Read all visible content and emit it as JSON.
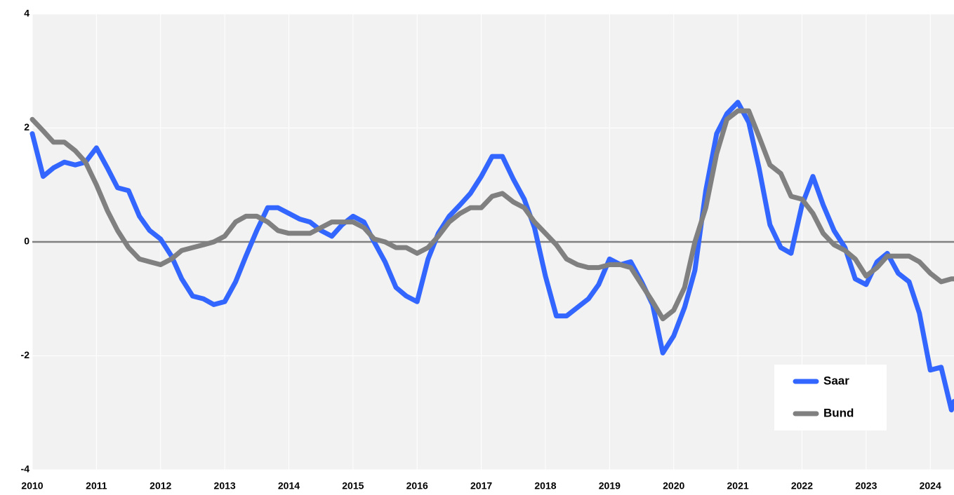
{
  "chart_data": {
    "type": "line",
    "x": [
      2010,
      2010.17,
      2010.33,
      2010.5,
      2010.67,
      2010.83,
      2011,
      2011.17,
      2011.33,
      2011.5,
      2011.67,
      2011.83,
      2012,
      2012.17,
      2012.33,
      2012.5,
      2012.67,
      2012.83,
      2013,
      2013.17,
      2013.33,
      2013.5,
      2013.67,
      2013.83,
      2014,
      2014.17,
      2014.33,
      2014.5,
      2014.67,
      2014.83,
      2015,
      2015.17,
      2015.33,
      2015.5,
      2015.67,
      2015.83,
      2016,
      2016.17,
      2016.33,
      2016.5,
      2016.67,
      2016.83,
      2017,
      2017.17,
      2017.33,
      2017.5,
      2017.67,
      2017.83,
      2018,
      2018.17,
      2018.33,
      2018.5,
      2018.67,
      2018.83,
      2019,
      2019.17,
      2019.33,
      2019.5,
      2019.67,
      2019.83,
      2020,
      2020.17,
      2020.33,
      2020.5,
      2020.67,
      2020.83,
      2021,
      2021.17,
      2021.33,
      2021.5,
      2021.67,
      2021.83,
      2022,
      2022.17,
      2022.33,
      2022.5,
      2022.67,
      2022.83,
      2023,
      2023.17,
      2023.33,
      2023.5,
      2023.67,
      2023.83,
      2024,
      2024.17,
      2024.33,
      2024.37
    ],
    "series": [
      {
        "name": "Saar",
        "color": "#3366ff",
        "values": [
          1.9,
          1.15,
          1.3,
          1.4,
          1.35,
          1.4,
          1.65,
          1.3,
          0.95,
          0.9,
          0.45,
          0.2,
          0.05,
          -0.25,
          -0.65,
          -0.95,
          -1.0,
          -1.1,
          -1.05,
          -0.7,
          -0.25,
          0.2,
          0.6,
          0.6,
          0.5,
          0.4,
          0.35,
          0.2,
          0.1,
          0.3,
          0.45,
          0.35,
          0.0,
          -0.35,
          -0.8,
          -0.95,
          -1.05,
          -0.3,
          0.15,
          0.45,
          0.65,
          0.85,
          1.15,
          1.5,
          1.5,
          1.1,
          0.75,
          0.25,
          -0.6,
          -1.3,
          -1.3,
          -1.15,
          -1.0,
          -0.75,
          -0.3,
          -0.4,
          -0.35,
          -0.7,
          -1.1,
          -1.95,
          -1.65,
          -1.15,
          -0.5,
          0.9,
          1.9,
          2.25,
          2.45,
          2.1,
          1.3,
          0.3,
          -0.1,
          -0.2,
          0.65,
          1.15,
          0.65,
          0.2,
          -0.1,
          -0.65,
          -0.75,
          -0.35,
          -0.2,
          -0.55,
          -0.7,
          -1.25,
          -2.25,
          -2.2,
          -2.95,
          -2.8
        ]
      },
      {
        "name": "Bund",
        "color": "#808080",
        "values": [
          2.15,
          1.95,
          1.75,
          1.75,
          1.6,
          1.4,
          1.0,
          0.55,
          0.2,
          -0.1,
          -0.3,
          -0.35,
          -0.4,
          -0.3,
          -0.15,
          -0.1,
          -0.05,
          0.0,
          0.1,
          0.35,
          0.45,
          0.45,
          0.35,
          0.2,
          0.15,
          0.15,
          0.15,
          0.25,
          0.35,
          0.35,
          0.35,
          0.25,
          0.05,
          0.0,
          -0.1,
          -0.1,
          -0.2,
          -0.1,
          0.1,
          0.35,
          0.5,
          0.6,
          0.6,
          0.8,
          0.85,
          0.7,
          0.6,
          0.35,
          0.15,
          -0.05,
          -0.3,
          -0.4,
          -0.45,
          -0.45,
          -0.4,
          -0.4,
          -0.45,
          -0.75,
          -1.05,
          -1.35,
          -1.2,
          -0.8,
          0.0,
          0.6,
          1.55,
          2.15,
          2.3,
          2.3,
          1.85,
          1.35,
          1.2,
          0.8,
          0.75,
          0.5,
          0.15,
          -0.05,
          -0.15,
          -0.3,
          -0.6,
          -0.45,
          -0.25,
          -0.25,
          -0.25,
          -0.35,
          -0.55,
          -0.7,
          -0.65,
          -0.65
        ]
      }
    ],
    "xlim": [
      2010,
      2024.37
    ],
    "xticks": [
      2010,
      2011,
      2012,
      2013,
      2014,
      2015,
      2016,
      2017,
      2018,
      2019,
      2020,
      2021,
      2022,
      2023,
      2024
    ],
    "ylim": [
      -4,
      4
    ],
    "yticks": [
      -4,
      -2,
      0,
      2,
      4
    ],
    "grid": true,
    "legend": "lower right"
  }
}
